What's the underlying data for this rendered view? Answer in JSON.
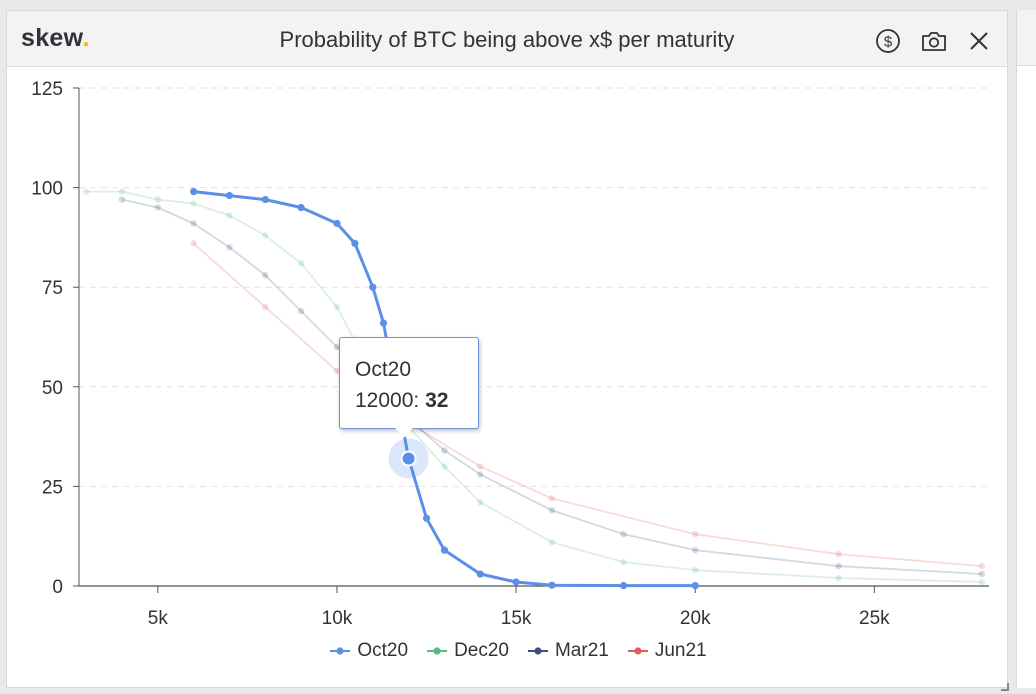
{
  "header": {
    "logo_text": "skew",
    "logo_dot": ".",
    "title": "Probability of BTC being above x$ per maturity",
    "icons": [
      "dollar-icon",
      "camera-icon",
      "close-icon"
    ]
  },
  "tooltip": {
    "series": "Oct20",
    "label": "12000:",
    "value": "32"
  },
  "chart_data": {
    "type": "line",
    "title": "Probability of BTC being above x$ per maturity",
    "xlabel": "",
    "ylabel": "",
    "xlim": [
      2800,
      28200
    ],
    "ylim": [
      0,
      125
    ],
    "x_ticks": [
      5000,
      10000,
      15000,
      20000,
      25000
    ],
    "x_tick_labels": [
      "5k",
      "10k",
      "15k",
      "20k",
      "25k"
    ],
    "y_ticks": [
      0,
      25,
      50,
      75,
      100,
      125
    ],
    "y_tick_labels": [
      "0",
      "25",
      "50",
      "75",
      "100",
      "125"
    ],
    "grid": "horizontal dashed",
    "legend_position": "bottom",
    "highlighted_series": "Oct20",
    "highlighted_point": {
      "x": 12000,
      "y": 32
    },
    "series": [
      {
        "name": "Oct20",
        "color": "#5b8fe8",
        "points": [
          [
            6000,
            99
          ],
          [
            7000,
            98
          ],
          [
            8000,
            97
          ],
          [
            9000,
            95
          ],
          [
            10000,
            91
          ],
          [
            10500,
            86
          ],
          [
            11000,
            75
          ],
          [
            11300,
            66
          ],
          [
            12000,
            32
          ],
          [
            12500,
            17
          ],
          [
            13000,
            9
          ],
          [
            14000,
            3
          ],
          [
            15000,
            1
          ],
          [
            16000,
            0.2
          ],
          [
            18000,
            0.1
          ],
          [
            20000,
            0.1
          ]
        ]
      },
      {
        "name": "Dec20",
        "color": "#5cb97c",
        "points": [
          [
            3000,
            99
          ],
          [
            4000,
            99
          ],
          [
            5000,
            97
          ],
          [
            6000,
            96
          ],
          [
            7000,
            93
          ],
          [
            8000,
            88
          ],
          [
            9000,
            81
          ],
          [
            10000,
            70
          ],
          [
            11000,
            53
          ],
          [
            12000,
            40
          ],
          [
            13000,
            30
          ],
          [
            14000,
            21
          ],
          [
            16000,
            11
          ],
          [
            18000,
            6
          ],
          [
            20000,
            4
          ],
          [
            24000,
            2
          ],
          [
            28000,
            1
          ]
        ]
      },
      {
        "name": "Mar21",
        "color": "#3d4f7c",
        "points": [
          [
            4000,
            97
          ],
          [
            5000,
            95
          ],
          [
            6000,
            91
          ],
          [
            7000,
            85
          ],
          [
            8000,
            78
          ],
          [
            9000,
            69
          ],
          [
            10000,
            60
          ],
          [
            11000,
            50
          ],
          [
            12000,
            42
          ],
          [
            13000,
            34
          ],
          [
            14000,
            28
          ],
          [
            16000,
            19
          ],
          [
            18000,
            13
          ],
          [
            20000,
            9
          ],
          [
            24000,
            5
          ],
          [
            28000,
            3
          ]
        ]
      },
      {
        "name": "Jun21",
        "color": "#e05b5b",
        "points": [
          [
            6000,
            86
          ],
          [
            8000,
            70
          ],
          [
            10000,
            54
          ],
          [
            12000,
            41
          ],
          [
            14000,
            30
          ],
          [
            16000,
            22
          ],
          [
            20000,
            13
          ],
          [
            24000,
            8
          ],
          [
            28000,
            5
          ]
        ]
      }
    ]
  }
}
